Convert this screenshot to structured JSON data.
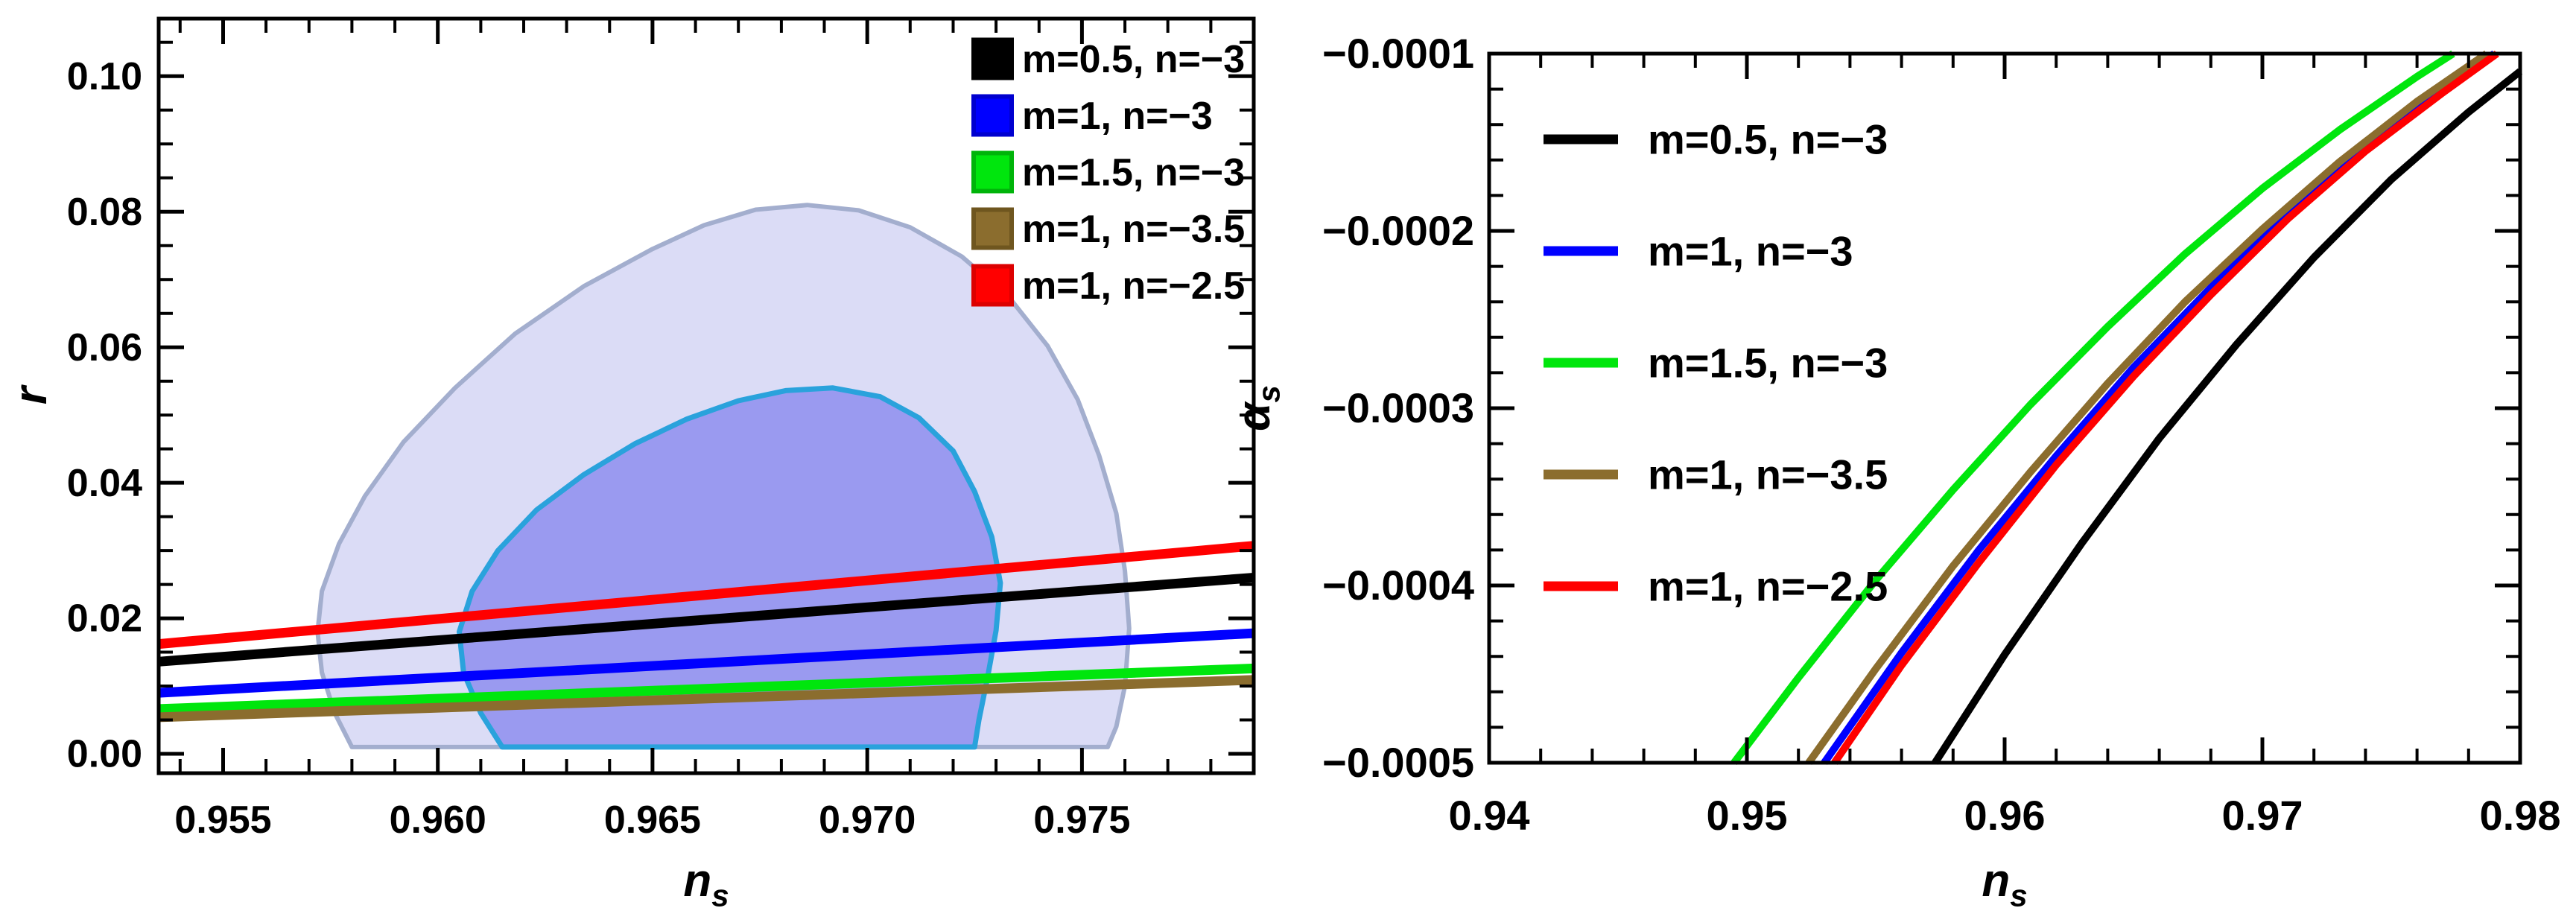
{
  "figure": {
    "background": "#ffffff",
    "text_color": "#000000",
    "frame_color": "#000000"
  },
  "chart_data": [
    {
      "id": "r-vs-ns",
      "type": "line",
      "panel": "left",
      "xlabel": {
        "main": "n",
        "sub": "s"
      },
      "ylabel": {
        "main": "r",
        "sub": ""
      },
      "xlim": [
        0.9535,
        0.979
      ],
      "ylim": [
        -0.00286,
        0.1085
      ],
      "grid": false,
      "x_ticks": {
        "values": [
          0.955,
          0.96,
          0.965,
          0.97,
          0.975
        ],
        "labels": [
          "0.955",
          "0.960",
          "0.965",
          "0.970",
          "0.975"
        ],
        "minor_step": 0.001
      },
      "y_ticks": {
        "values": [
          0.0,
          0.02,
          0.04,
          0.06,
          0.08,
          0.1
        ],
        "labels": [
          "0.00",
          "0.02",
          "0.04",
          "0.06",
          "0.08",
          "0.10"
        ],
        "minor_step": 0.005
      },
      "legend": {
        "style": "filled-square",
        "position": "top-right",
        "entries": [
          {
            "label": "m=0.5, n=−3",
            "color": "#000000",
            "border": "#000000"
          },
          {
            "label": "m=1, n=−3",
            "color": "#0000ff",
            "border": "#0000cf"
          },
          {
            "label": "m=1.5, n=−3",
            "color": "#00e60d",
            "border": "#00b40a"
          },
          {
            "label": "m=1, n=−3.5",
            "color": "#8b6d2e",
            "border": "#6f561f"
          },
          {
            "label": "m=1, n=−2.5",
            "color": "#ff0000",
            "border": "#dc0000"
          }
        ]
      },
      "contours": [
        {
          "name": "planck-2sigma",
          "fill": "#dbdcf6",
          "stroke": "#a3aece",
          "stroke_width": 6,
          "points": [
            [
              0.958,
              0.001
            ],
            [
              0.9576,
              0.006
            ],
            [
              0.9573,
              0.012
            ],
            [
              0.9572,
              0.018
            ],
            [
              0.9573,
              0.024
            ],
            [
              0.9577,
              0.031
            ],
            [
              0.9583,
              0.038
            ],
            [
              0.9592,
              0.046
            ],
            [
              0.9604,
              0.054
            ],
            [
              0.9618,
              0.062
            ],
            [
              0.9634,
              0.069
            ],
            [
              0.965,
              0.0745
            ],
            [
              0.9662,
              0.078
            ],
            [
              0.9674,
              0.0803
            ],
            [
              0.9686,
              0.081
            ],
            [
              0.9698,
              0.0802
            ],
            [
              0.971,
              0.0777
            ],
            [
              0.9722,
              0.0734
            ],
            [
              0.9733,
              0.0674
            ],
            [
              0.9742,
              0.0602
            ],
            [
              0.9749,
              0.0523
            ],
            [
              0.9754,
              0.044
            ],
            [
              0.9758,
              0.0355
            ],
            [
              0.976,
              0.027
            ],
            [
              0.9761,
              0.0185
            ],
            [
              0.976,
              0.01
            ],
            [
              0.9758,
              0.004
            ],
            [
              0.9756,
              0.001
            ]
          ]
        },
        {
          "name": "planck-1sigma",
          "fill": "#9a9af0",
          "stroke": "#2aa2dc",
          "stroke_width": 7,
          "points": [
            [
              0.9615,
              0.001
            ],
            [
              0.961,
              0.006
            ],
            [
              0.9606,
              0.012
            ],
            [
              0.9605,
              0.018
            ],
            [
              0.9608,
              0.024
            ],
            [
              0.9614,
              0.03
            ],
            [
              0.9623,
              0.036
            ],
            [
              0.9634,
              0.0412
            ],
            [
              0.9646,
              0.0458
            ],
            [
              0.9658,
              0.0494
            ],
            [
              0.967,
              0.0521
            ],
            [
              0.9681,
              0.0536
            ],
            [
              0.9692,
              0.054
            ],
            [
              0.9703,
              0.0527
            ],
            [
              0.9712,
              0.0496
            ],
            [
              0.972,
              0.0447
            ],
            [
              0.9725,
              0.0387
            ],
            [
              0.9729,
              0.032
            ],
            [
              0.9731,
              0.0252
            ],
            [
              0.973,
              0.0182
            ],
            [
              0.9728,
              0.0112
            ],
            [
              0.9726,
              0.005
            ],
            [
              0.9725,
              0.001
            ]
          ]
        }
      ],
      "series": [
        {
          "name": "m=0.5, n=−3",
          "color": "#000000",
          "points": [
            [
              0.9535,
              0.0136
            ],
            [
              0.979,
              0.026
            ]
          ]
        },
        {
          "name": "m=1, n=−3",
          "color": "#0000ff",
          "points": [
            [
              0.9535,
              0.009
            ],
            [
              0.979,
              0.0178
            ]
          ]
        },
        {
          "name": "m=1.5, n=−3",
          "color": "#00e60d",
          "points": [
            [
              0.9535,
              0.0066
            ],
            [
              0.979,
              0.0126
            ]
          ]
        },
        {
          "name": "m=1, n=−3.5",
          "color": "#8b6d2e",
          "points": [
            [
              0.9535,
              0.0054
            ],
            [
              0.979,
              0.0109
            ]
          ]
        },
        {
          "name": "m=1, n=−2.5",
          "color": "#ff0000",
          "points": [
            [
              0.9535,
              0.0162
            ],
            [
              0.979,
              0.0307
            ]
          ]
        }
      ]
    },
    {
      "id": "alphas-vs-ns",
      "type": "line",
      "panel": "right",
      "xlabel": {
        "main": "n",
        "sub": "s"
      },
      "ylabel": {
        "main": "α",
        "sub": "s"
      },
      "xlim": [
        0.94,
        0.98
      ],
      "ylim": [
        -0.0005,
        -0.0001
      ],
      "grid": false,
      "x_ticks": {
        "values": [
          0.94,
          0.95,
          0.96,
          0.97,
          0.98
        ],
        "labels": [
          "0.94",
          "0.95",
          "0.96",
          "0.97",
          "0.98"
        ],
        "minor_step": 0.002
      },
      "y_ticks": {
        "values": [
          -0.0001,
          -0.0002,
          -0.0003,
          -0.0004,
          -0.0005
        ],
        "labels": [
          "−0.0001",
          "−0.0002",
          "−0.0003",
          "−0.0004",
          "−0.0005"
        ],
        "minor_step": 2e-05
      },
      "legend": {
        "style": "line",
        "position": "top-left",
        "entries": [
          {
            "label": "m=0.5, n=−3",
            "color": "#000000"
          },
          {
            "label": "m=1, n=−3",
            "color": "#0000ff"
          },
          {
            "label": "m=1.5, n=−3",
            "color": "#00e60d"
          },
          {
            "label": "m=1, n=−3.5",
            "color": "#8b6d2e"
          },
          {
            "label": "m=1, n=−2.5",
            "color": "#ff0000"
          }
        ]
      },
      "contours": [],
      "series": [
        {
          "name": "m=0.5, n=−3",
          "color": "#000000",
          "points": [
            [
              0.9573,
              -0.0005
            ],
            [
              0.96,
              -0.000439
            ],
            [
              0.963,
              -0.000376
            ],
            [
              0.966,
              -0.000317
            ],
            [
              0.969,
              -0.000264
            ],
            [
              0.972,
              -0.000215
            ],
            [
              0.975,
              -0.000171
            ],
            [
              0.978,
              -0.000133
            ],
            [
              0.98,
              -0.00011
            ]
          ]
        },
        {
          "name": "m=1, n=−3",
          "color": "#0000ff",
          "points": [
            [
              0.953,
              -0.0005
            ],
            [
              0.956,
              -0.000438
            ],
            [
              0.959,
              -0.00038
            ],
            [
              0.962,
              -0.000327
            ],
            [
              0.965,
              -0.000277
            ],
            [
              0.968,
              -0.000232
            ],
            [
              0.971,
              -0.00019
            ],
            [
              0.974,
              -0.000153
            ],
            [
              0.977,
              -0.00012
            ],
            [
              0.979,
              -0.0001
            ]
          ]
        },
        {
          "name": "m=1.5, n=−3",
          "color": "#00e60d",
          "points": [
            [
              0.9495,
              -0.0005
            ],
            [
              0.952,
              -0.000452
            ],
            [
              0.955,
              -0.000397
            ],
            [
              0.958,
              -0.000346
            ],
            [
              0.961,
              -0.000298
            ],
            [
              0.964,
              -0.000254
            ],
            [
              0.967,
              -0.000213
            ],
            [
              0.97,
              -0.000176
            ],
            [
              0.973,
              -0.000143
            ],
            [
              0.976,
              -0.000113
            ],
            [
              0.9774,
              -0.0001
            ]
          ]
        },
        {
          "name": "m=1, n=−3.5",
          "color": "#8b6d2e",
          "points": [
            [
              0.9524,
              -0.0005
            ],
            [
              0.955,
              -0.000447
            ],
            [
              0.958,
              -0.000389
            ],
            [
              0.961,
              -0.000336
            ],
            [
              0.964,
              -0.000286
            ],
            [
              0.967,
              -0.00024
            ],
            [
              0.97,
              -0.000199
            ],
            [
              0.973,
              -0.000161
            ],
            [
              0.976,
              -0.000127
            ],
            [
              0.9787,
              -0.0001
            ]
          ]
        },
        {
          "name": "m=1, n=−2.5",
          "color": "#ff0000",
          "points": [
            [
              0.9534,
              -0.0005
            ],
            [
              0.956,
              -0.000445
            ],
            [
              0.959,
              -0.000387
            ],
            [
              0.962,
              -0.000332
            ],
            [
              0.965,
              -0.000282
            ],
            [
              0.968,
              -0.000236
            ],
            [
              0.971,
              -0.000193
            ],
            [
              0.974,
              -0.000155
            ],
            [
              0.977,
              -0.000122
            ],
            [
              0.9791,
              -0.0001
            ]
          ]
        }
      ]
    }
  ]
}
